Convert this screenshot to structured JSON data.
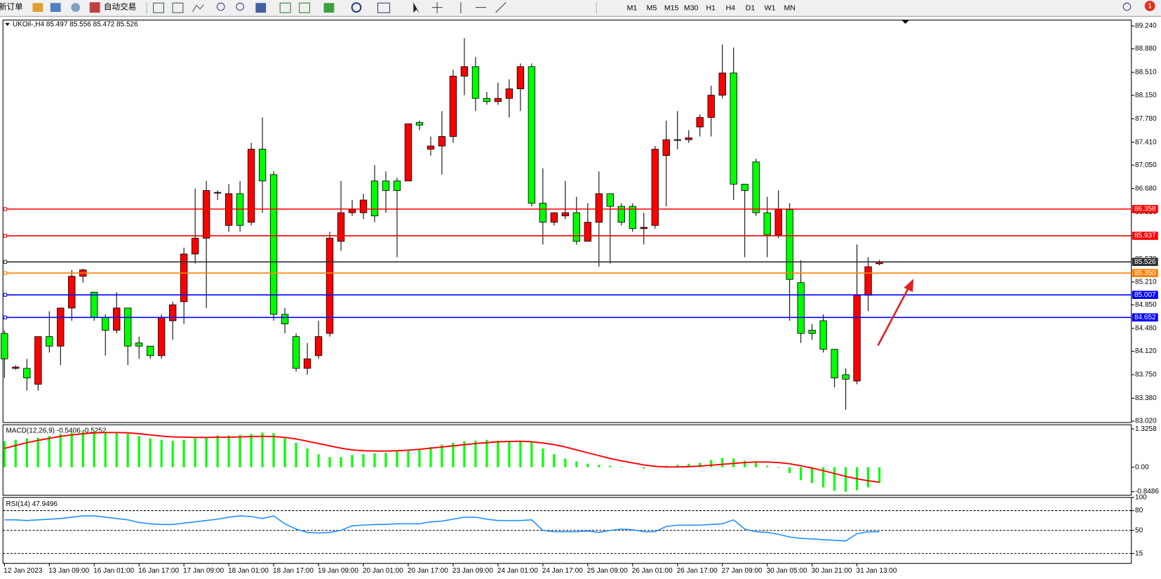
{
  "toolbar": {
    "new_order": "新订单",
    "auto_trade": "自动交易",
    "timeframes": [
      "M1",
      "M5",
      "M15",
      "M30",
      "H1",
      "H4",
      "D1",
      "W1",
      "MN"
    ],
    "badge": "1"
  },
  "chart_data": [
    {
      "type": "candlestick",
      "title": "UKOil-,H4 85.497 85.556 85.472 85.526",
      "x": [
        "12 Jan 2023",
        null,
        null,
        null,
        "13 Jan 09:00",
        null,
        null,
        null,
        "16 Jan 01:00",
        null,
        null,
        null,
        "16 Jan 17:00",
        null,
        null,
        null,
        "17 Jan 09:00",
        null,
        null,
        null,
        "18 Jan 01:00",
        null,
        null,
        null,
        "18 Jan 17:00",
        null,
        null,
        null,
        "19 Jan 09:00",
        null,
        null,
        null,
        "20 Jan 01:00",
        null,
        null,
        null,
        "20 Jan 17:00",
        null,
        null,
        null,
        "23 Jan 09:00",
        null,
        null,
        null,
        "24 Jan 01:00",
        null,
        null,
        null,
        "24 Jan 17:00",
        null,
        null,
        null,
        "25 Jan 09:00",
        null,
        null,
        null,
        "26 Jan 01:00",
        null,
        null,
        null,
        "26 Jan 17:00",
        null,
        null,
        null,
        "27 Jan 09:00",
        null,
        null,
        null,
        "30 Jan 05:00",
        null,
        null,
        null,
        "30 Jan 21:00",
        null,
        null,
        null,
        "31 Jan 13:00",
        null,
        null
      ],
      "open": [
        84.4,
        83.85,
        83.85,
        83.6,
        84.35,
        84.2,
        84.8,
        85.3,
        85.05,
        84.65,
        84.45,
        84.8,
        84.25,
        84.2,
        84.05,
        84.6,
        84.9,
        85.65,
        85.9,
        86.62,
        86.1,
        86.6,
        86.15,
        87.3,
        86.9,
        84.7,
        84.35,
        83.85,
        84.05,
        84.4,
        85.85,
        86.3,
        86.3,
        86.8,
        86.8,
        86.8,
        86.8,
        87.72,
        87.3,
        87.35,
        87.5,
        88.45,
        88.6,
        88.1,
        88.05,
        88.1,
        88.25,
        88.6,
        86.45,
        86.15,
        86.25,
        86.3,
        85.85,
        86.15,
        86.6,
        86.4,
        86.4,
        86.05,
        86.1,
        87.2,
        87.45,
        87.45,
        87.65,
        87.8,
        88.15,
        88.5,
        86.75,
        87.1,
        86.3,
        85.95,
        86.35,
        85.2,
        84.45,
        84.6,
        84.15,
        83.75,
        83.65,
        85.0,
        85.497
      ],
      "high": [
        84.45,
        83.9,
        84.0,
        84.35,
        84.75,
        84.8,
        85.4,
        85.42,
        85.05,
        84.7,
        85.05,
        84.8,
        84.35,
        84.2,
        84.7,
        84.9,
        85.75,
        86.68,
        86.8,
        86.65,
        86.75,
        86.8,
        87.4,
        87.8,
        86.95,
        84.8,
        84.4,
        84.25,
        84.6,
        86.0,
        86.8,
        86.5,
        86.6,
        87.05,
        86.95,
        86.85,
        87.7,
        87.75,
        87.5,
        87.9,
        88.55,
        89.05,
        88.75,
        88.2,
        88.35,
        88.4,
        88.65,
        88.65,
        87.0,
        86.3,
        86.8,
        86.55,
        86.45,
        86.95,
        86.6,
        86.45,
        86.45,
        86.3,
        87.35,
        87.75,
        87.9,
        87.6,
        87.85,
        88.3,
        88.95,
        88.9,
        86.75,
        87.15,
        86.55,
        86.65,
        86.45,
        85.55,
        84.55,
        84.7,
        84.15,
        83.85,
        85.8,
        85.6,
        85.556
      ],
      "low": [
        83.7,
        83.83,
        83.5,
        83.5,
        84.1,
        83.9,
        84.6,
        85.2,
        84.6,
        84.05,
        84.4,
        83.9,
        84.0,
        84.0,
        84.0,
        84.3,
        84.55,
        85.5,
        84.8,
        86.5,
        86.0,
        86.0,
        86.1,
        86.3,
        84.6,
        84.4,
        83.8,
        83.75,
        84.0,
        84.35,
        85.7,
        86.25,
        86.2,
        86.15,
        86.3,
        85.6,
        86.8,
        87.6,
        87.2,
        86.9,
        87.4,
        88.15,
        87.9,
        88.0,
        88.0,
        87.8,
        87.9,
        86.4,
        85.8,
        86.1,
        86.2,
        85.8,
        85.85,
        85.45,
        85.5,
        86.1,
        86.0,
        85.8,
        86.05,
        86.4,
        87.3,
        87.4,
        87.5,
        87.5,
        88.1,
        86.5,
        85.6,
        86.25,
        85.6,
        85.9,
        84.6,
        84.25,
        84.3,
        84.1,
        83.55,
        83.2,
        83.6,
        84.75,
        85.472
      ],
      "close": [
        84.0,
        83.87,
        83.7,
        84.35,
        84.2,
        84.8,
        85.3,
        85.4,
        84.65,
        84.45,
        84.8,
        84.2,
        84.2,
        84.05,
        84.65,
        84.85,
        85.65,
        85.9,
        86.65,
        86.62,
        86.6,
        86.1,
        87.3,
        86.8,
        84.7,
        84.55,
        83.85,
        84.0,
        84.35,
        85.9,
        86.3,
        86.35,
        86.5,
        86.25,
        86.65,
        86.65,
        87.7,
        87.68,
        87.35,
        87.5,
        88.45,
        88.6,
        88.1,
        88.05,
        88.1,
        88.25,
        88.6,
        86.45,
        86.15,
        86.3,
        86.3,
        85.85,
        86.15,
        86.6,
        86.4,
        86.15,
        86.05,
        86.07,
        87.3,
        87.45,
        87.45,
        87.48,
        87.8,
        88.15,
        88.5,
        86.75,
        86.65,
        86.3,
        85.95,
        86.35,
        85.25,
        84.4,
        84.4,
        84.15,
        83.7,
        83.68,
        85.0,
        85.45,
        85.526
      ],
      "up_color": "#ff0000",
      "down_color": "#00ff00",
      "ylim": [
        82.997,
        89.333
      ],
      "yticks": [
        {
          "value": 89.24,
          "label": "89.240"
        },
        {
          "value": 88.88,
          "label": "88.880"
        },
        {
          "value": 88.51,
          "label": "88.510"
        },
        {
          "value": 88.15,
          "label": "88.150"
        },
        {
          "value": 87.78,
          "label": "87.780"
        },
        {
          "value": 87.41,
          "label": "87.410"
        },
        {
          "value": 87.05,
          "label": "87.050"
        },
        {
          "value": 86.68,
          "label": "86.680"
        },
        {
          "value": 86.31,
          "label": "86.310"
        },
        {
          "value": 85.94,
          "label": "85.940"
        },
        {
          "value": 85.57,
          "label": "85.570"
        },
        {
          "value": 85.21,
          "label": "85.210"
        },
        {
          "value": 84.85,
          "label": "84.850"
        },
        {
          "value": 84.48,
          "label": "84.480"
        },
        {
          "value": 84.12,
          "label": "84.120"
        },
        {
          "value": 83.75,
          "label": "83.750"
        },
        {
          "value": 83.38,
          "label": "83.380"
        },
        {
          "value": 83.02,
          "label": "83.020"
        }
      ],
      "hlines": [
        {
          "value": 86.358,
          "label": "86.358",
          "color": "#ff0000"
        },
        {
          "value": 85.937,
          "label": "85.937",
          "color": "#ff0000"
        },
        {
          "value": 85.526,
          "label": "85.526",
          "color": "#303030"
        },
        {
          "value": 85.35,
          "label": "85.350",
          "color": "#ff8000"
        },
        {
          "value": 85.007,
          "label": "85.007",
          "color": "#0000ff"
        },
        {
          "value": 84.652,
          "label": "84.652",
          "color": "#0000ff"
        }
      ]
    },
    {
      "type": "macd",
      "title": "MACD(12,26,9) -0.5406 -0.5252",
      "values": [
        0.9,
        0.95,
        1.0,
        1.02,
        1.08,
        1.15,
        1.2,
        1.25,
        1.25,
        1.22,
        1.2,
        1.15,
        1.08,
        1.0,
        0.95,
        0.92,
        0.95,
        1.0,
        1.05,
        1.1,
        1.1,
        1.12,
        1.15,
        1.2,
        1.18,
        1.0,
        0.85,
        0.65,
        0.45,
        0.35,
        0.35,
        0.42,
        0.45,
        0.48,
        0.5,
        0.55,
        0.58,
        0.62,
        0.7,
        0.78,
        0.85,
        0.9,
        0.92,
        0.95,
        0.92,
        0.9,
        0.92,
        0.85,
        0.65,
        0.45,
        0.3,
        0.2,
        0.12,
        0.08,
        0.05,
        0.02,
        0.0,
        -0.05,
        0.02,
        0.05,
        0.08,
        0.12,
        0.15,
        0.25,
        0.32,
        0.3,
        0.22,
        0.15,
        0.05,
        -0.02,
        -0.2,
        -0.45,
        -0.55,
        -0.7,
        -0.82,
        -0.85,
        -0.8,
        -0.7,
        -0.54
      ],
      "signal": [
        0.65,
        0.75,
        0.85,
        0.93,
        1.0,
        1.07,
        1.12,
        1.16,
        1.19,
        1.2,
        1.2,
        1.19,
        1.16,
        1.12,
        1.08,
        1.05,
        1.04,
        1.03,
        1.03,
        1.04,
        1.04,
        1.05,
        1.06,
        1.07,
        1.06,
        1.03,
        0.98,
        0.9,
        0.82,
        0.74,
        0.66,
        0.6,
        0.57,
        0.56,
        0.56,
        0.57,
        0.59,
        0.62,
        0.66,
        0.7,
        0.74,
        0.78,
        0.82,
        0.85,
        0.88,
        0.89,
        0.9,
        0.88,
        0.84,
        0.78,
        0.7,
        0.6,
        0.5,
        0.4,
        0.3,
        0.22,
        0.15,
        0.08,
        0.03,
        0.01,
        0.01,
        0.02,
        0.04,
        0.07,
        0.1,
        0.13,
        0.16,
        0.18,
        0.18,
        0.16,
        0.12,
        0.05,
        -0.03,
        -0.12,
        -0.22,
        -0.32,
        -0.4,
        -0.47,
        -0.52
      ],
      "color": "#00ff00",
      "signal_color": "#ff0000",
      "ylim": [
        -0.97,
        1.47
      ],
      "yticks": [
        1.3258,
        {
          "value": 0,
          "label": "0.00"
        },
        -0.8486
      ]
    },
    {
      "type": "rsi",
      "title": "RSI(14) 47.9496",
      "values": [
        66,
        66,
        65,
        66,
        67,
        68,
        70,
        72,
        72,
        70,
        68,
        66,
        62,
        60,
        59,
        59,
        61,
        63,
        65,
        67,
        70,
        72,
        71,
        68,
        72,
        60,
        52,
        47,
        46,
        47,
        50,
        57,
        58,
        59,
        59,
        60,
        60,
        60,
        63,
        64,
        67,
        70,
        70,
        67,
        65,
        65,
        65,
        66,
        50,
        48,
        48,
        48,
        49,
        47,
        50,
        52,
        51,
        48,
        48,
        56,
        58,
        58,
        58,
        59,
        60,
        66,
        52,
        48,
        47,
        44,
        40,
        38,
        37,
        36,
        35,
        34,
        45,
        48,
        47.9496
      ],
      "color": "#1e90ff",
      "ylim": [
        0,
        100
      ],
      "yticks": [
        100,
        80,
        50,
        15
      ],
      "levels": [
        80,
        50,
        15
      ]
    }
  ]
}
